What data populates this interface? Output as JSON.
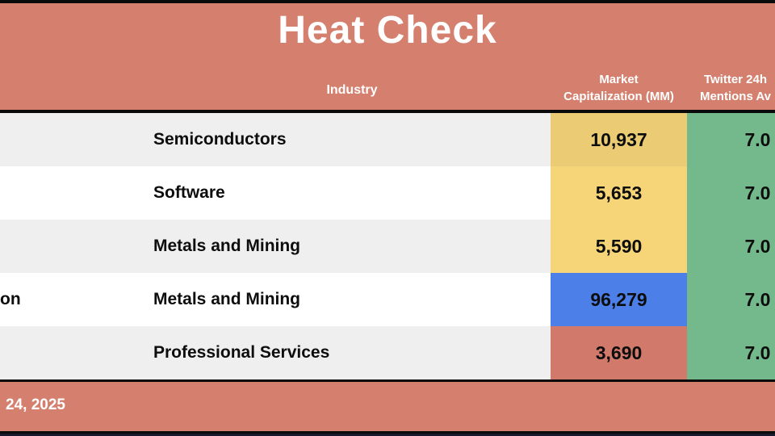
{
  "title": "Heat Check",
  "colors": {
    "banner": "#d5806f",
    "border": "#0a0a0a",
    "bottom_strip": "#171a2b",
    "row_alt": "#efefef",
    "row_white": "#ffffff",
    "heat_yellow_high": "#ebcc74",
    "heat_yellow": "#f6d578",
    "heat_blue": "#4d7fe8",
    "heat_red": "#d1796b",
    "heat_green": "#74b98c"
  },
  "header": {
    "industry": "Industry",
    "market_cap": [
      "Market",
      "Capitalization (MM)"
    ],
    "twitter": [
      "Twitter 24h",
      "Mentions Av"
    ]
  },
  "rows": [
    {
      "company_fragment": "",
      "industry": "Semiconductors",
      "market_cap": "10,937",
      "market_cap_bg": "#ebcc74",
      "twitter": "7.0",
      "twitter_bg": "#74b98c",
      "bg": "#efefef"
    },
    {
      "company_fragment": "",
      "industry": "Software",
      "market_cap": "5,653",
      "market_cap_bg": "#f6d578",
      "twitter": "7.0",
      "twitter_bg": "#74b98c",
      "bg": "#ffffff"
    },
    {
      "company_fragment": "",
      "industry": "Metals and Mining",
      "market_cap": "5,590",
      "market_cap_bg": "#f6d578",
      "twitter": "7.0",
      "twitter_bg": "#74b98c",
      "bg": "#efefef"
    },
    {
      "company_fragment": "on",
      "industry": "Metals and Mining",
      "market_cap": "96,279",
      "market_cap_bg": "#4d7fe8",
      "twitter": "7.0",
      "twitter_bg": "#74b98c",
      "bg": "#ffffff"
    },
    {
      "company_fragment": "",
      "industry": "Professional Services",
      "market_cap": "3,690",
      "market_cap_bg": "#d1796b",
      "twitter": "7.0",
      "twitter_bg": "#74b98c",
      "bg": "#efefef"
    }
  ],
  "footer": {
    "date_fragment": "24, 2025"
  },
  "chart_data": {
    "type": "heatmap",
    "title": "Heat Check",
    "columns": [
      "Industry",
      "Market Capitalization (MM)",
      "Twitter 24h Mentions Av"
    ],
    "rows": [
      {
        "industry": "Semiconductors",
        "market_capitalization_mm": 10937,
        "twitter_24h_mentions_avg": 7.0,
        "market_cap_heat": "yellow",
        "mentions_heat": "green"
      },
      {
        "industry": "Software",
        "market_capitalization_mm": 5653,
        "twitter_24h_mentions_avg": 7.0,
        "market_cap_heat": "yellow",
        "mentions_heat": "green"
      },
      {
        "industry": "Metals and Mining",
        "market_capitalization_mm": 5590,
        "twitter_24h_mentions_avg": 7.0,
        "market_cap_heat": "yellow",
        "mentions_heat": "green"
      },
      {
        "industry": "Metals and Mining",
        "market_capitalization_mm": 96279,
        "twitter_24h_mentions_avg": 7.0,
        "market_cap_heat": "blue",
        "mentions_heat": "green"
      },
      {
        "industry": "Professional Services",
        "market_capitalization_mm": 3690,
        "twitter_24h_mentions_avg": 7.0,
        "market_cap_heat": "red",
        "mentions_heat": "green"
      }
    ],
    "layout": "table with heat-colored value cells; first column and right column cropped by viewport edges"
  }
}
